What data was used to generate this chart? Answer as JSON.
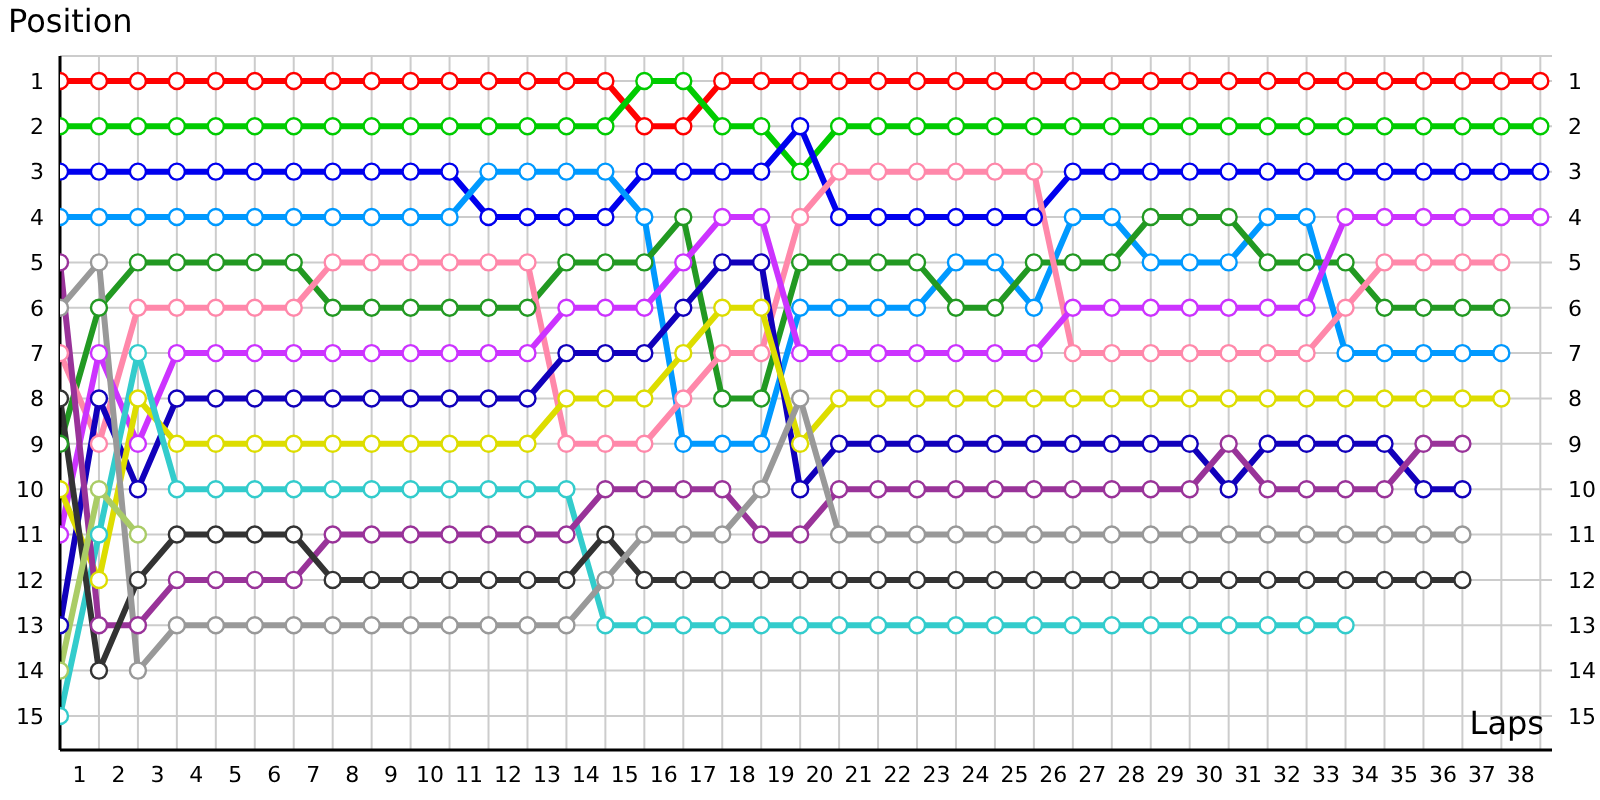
{
  "chart_data": {
    "type": "line",
    "xlabel": "Laps",
    "ylabel": "Position",
    "x": [
      0,
      1,
      2,
      3,
      4,
      5,
      6,
      7,
      8,
      9,
      10,
      11,
      12,
      13,
      14,
      15,
      16,
      17,
      18,
      19,
      20,
      21,
      22,
      23,
      24,
      25,
      26,
      27,
      28,
      29,
      30,
      31,
      32,
      33,
      34,
      35,
      36,
      37,
      38
    ],
    "xlim": [
      0,
      38.3
    ],
    "xticks": [
      {
        "value": 0.5,
        "label": "1"
      },
      {
        "value": 1.5,
        "label": "2"
      },
      {
        "value": 2.5,
        "label": "3"
      },
      {
        "value": 3.5,
        "label": "4"
      },
      {
        "value": 4.5,
        "label": "5"
      },
      {
        "value": 5.5,
        "label": "6"
      },
      {
        "value": 6.5,
        "label": "7"
      },
      {
        "value": 7.5,
        "label": "8"
      },
      {
        "value": 8.5,
        "label": "9"
      },
      {
        "value": 9.5,
        "label": "10"
      },
      {
        "value": 10.5,
        "label": "11"
      },
      {
        "value": 11.5,
        "label": "12"
      },
      {
        "value": 12.5,
        "label": "13"
      },
      {
        "value": 13.5,
        "label": "14"
      },
      {
        "value": 14.5,
        "label": "15"
      },
      {
        "value": 15.5,
        "label": "16"
      },
      {
        "value": 16.5,
        "label": "17"
      },
      {
        "value": 17.5,
        "label": "18"
      },
      {
        "value": 18.5,
        "label": "19"
      },
      {
        "value": 19.5,
        "label": "20"
      },
      {
        "value": 20.5,
        "label": "21"
      },
      {
        "value": 21.5,
        "label": "22"
      },
      {
        "value": 22.5,
        "label": "23"
      },
      {
        "value": 23.5,
        "label": "24"
      },
      {
        "value": 24.5,
        "label": "25"
      },
      {
        "value": 25.5,
        "label": "26"
      },
      {
        "value": 26.5,
        "label": "27"
      },
      {
        "value": 27.5,
        "label": "28"
      },
      {
        "value": 28.5,
        "label": "29"
      },
      {
        "value": 29.5,
        "label": "30"
      },
      {
        "value": 30.5,
        "label": "31"
      },
      {
        "value": 31.5,
        "label": "32"
      },
      {
        "value": 32.5,
        "label": "33"
      },
      {
        "value": 33.5,
        "label": "34"
      },
      {
        "value": 34.5,
        "label": "35"
      },
      {
        "value": 35.5,
        "label": "36"
      },
      {
        "value": 36.5,
        "label": "37"
      },
      {
        "value": 37.5,
        "label": "38"
      }
    ],
    "ylim": [
      15.75,
      0.45
    ],
    "yticks": [
      1,
      2,
      3,
      4,
      5,
      6,
      7,
      8,
      9,
      10,
      11,
      12,
      13,
      14,
      15
    ],
    "y2lim": [
      15.75,
      0.45
    ],
    "y2ticks": [
      1,
      2,
      3,
      4,
      5,
      6,
      7,
      8,
      9,
      10,
      11,
      12,
      13,
      14,
      15
    ],
    "grid": true,
    "marker": "circle",
    "line_style": "solid",
    "series": [
      {
        "color": "#ff0000",
        "values": [
          1,
          1,
          1,
          1,
          1,
          1,
          1,
          1,
          1,
          1,
          1,
          1,
          1,
          1,
          1,
          2,
          2,
          1,
          1,
          1,
          1,
          1,
          1,
          1,
          1,
          1,
          1,
          1,
          1,
          1,
          1,
          1,
          1,
          1,
          1,
          1,
          1,
          1,
          1
        ]
      },
      {
        "color": "#00cc00",
        "values": [
          2,
          2,
          2,
          2,
          2,
          2,
          2,
          2,
          2,
          2,
          2,
          2,
          2,
          2,
          2,
          1,
          1,
          2,
          2,
          3,
          2,
          2,
          2,
          2,
          2,
          2,
          2,
          2,
          2,
          2,
          2,
          2,
          2,
          2,
          2,
          2,
          2,
          2,
          2
        ]
      },
      {
        "color": "#0000ee",
        "values": [
          3,
          3,
          3,
          3,
          3,
          3,
          3,
          3,
          3,
          3,
          3,
          4,
          4,
          4,
          4,
          3,
          3,
          3,
          3,
          2,
          4,
          4,
          4,
          4,
          4,
          4,
          3,
          3,
          3,
          3,
          3,
          3,
          3,
          3,
          3,
          3,
          3,
          3,
          3
        ]
      },
      {
        "color": "#0099ff",
        "values": [
          4,
          4,
          4,
          4,
          4,
          4,
          4,
          4,
          4,
          4,
          4,
          3,
          3,
          3,
          3,
          4,
          9,
          9,
          9,
          6,
          6,
          6,
          6,
          5,
          5,
          6,
          4,
          4,
          5,
          5,
          5,
          4,
          4,
          7,
          7,
          7,
          7,
          7,
          null
        ]
      },
      {
        "color": "#229922",
        "values": [
          9,
          6,
          5,
          5,
          5,
          5,
          5,
          6,
          6,
          6,
          6,
          6,
          6,
          5,
          5,
          5,
          4,
          8,
          8,
          5,
          5,
          5,
          5,
          6,
          6,
          5,
          5,
          5,
          4,
          4,
          4,
          5,
          5,
          5,
          6,
          6,
          6,
          6,
          null
        ]
      },
      {
        "color": "#ff88aa",
        "values": [
          7,
          9,
          6,
          6,
          6,
          6,
          6,
          5,
          5,
          5,
          5,
          5,
          5,
          9,
          9,
          9,
          8,
          7,
          7,
          4,
          3,
          3,
          3,
          3,
          3,
          3,
          7,
          7,
          7,
          7,
          7,
          7,
          7,
          6,
          5,
          5,
          5,
          5,
          null
        ]
      },
      {
        "color": "#cc33ff",
        "values": [
          11,
          7,
          9,
          7,
          7,
          7,
          7,
          7,
          7,
          7,
          7,
          7,
          7,
          6,
          6,
          6,
          5,
          4,
          4,
          7,
          7,
          7,
          7,
          7,
          7,
          7,
          6,
          6,
          6,
          6,
          6,
          6,
          6,
          4,
          4,
          4,
          4,
          4,
          4
        ]
      },
      {
        "color": "#1100bb",
        "values": [
          13,
          8,
          10,
          8,
          8,
          8,
          8,
          8,
          8,
          8,
          8,
          8,
          8,
          7,
          7,
          7,
          6,
          5,
          5,
          10,
          9,
          9,
          9,
          9,
          9,
          9,
          9,
          9,
          9,
          9,
          10,
          9,
          9,
          9,
          9,
          10,
          10,
          null,
          null
        ]
      },
      {
        "color": "#dddd00",
        "values": [
          10,
          12,
          8,
          9,
          9,
          9,
          9,
          9,
          9,
          9,
          9,
          9,
          9,
          8,
          8,
          8,
          7,
          6,
          6,
          9,
          8,
          8,
          8,
          8,
          8,
          8,
          8,
          8,
          8,
          8,
          8,
          8,
          8,
          8,
          8,
          8,
          8,
          8,
          null
        ]
      },
      {
        "color": "#33cccc",
        "values": [
          15,
          11,
          7,
          10,
          10,
          10,
          10,
          10,
          10,
          10,
          10,
          10,
          10,
          10,
          13,
          13,
          13,
          13,
          13,
          13,
          13,
          13,
          13,
          13,
          13,
          13,
          13,
          13,
          13,
          13,
          13,
          13,
          13,
          13,
          null,
          null,
          null,
          null,
          null
        ]
      },
      {
        "color": "#993399",
        "values": [
          5,
          13,
          13,
          12,
          12,
          12,
          12,
          11,
          11,
          11,
          11,
          11,
          11,
          11,
          10,
          10,
          10,
          10,
          11,
          11,
          10,
          10,
          10,
          10,
          10,
          10,
          10,
          10,
          10,
          10,
          9,
          10,
          10,
          10,
          10,
          9,
          9,
          null,
          null
        ]
      },
      {
        "color": "#333333",
        "values": [
          8,
          14,
          12,
          11,
          11,
          11,
          11,
          12,
          12,
          12,
          12,
          12,
          12,
          12,
          11,
          12,
          12,
          12,
          12,
          12,
          12,
          12,
          12,
          12,
          12,
          12,
          12,
          12,
          12,
          12,
          12,
          12,
          12,
          12,
          12,
          12,
          12,
          null,
          null
        ]
      },
      {
        "color": "#999999",
        "values": [
          6,
          5,
          14,
          13,
          13,
          13,
          13,
          13,
          13,
          13,
          13,
          13,
          13,
          13,
          12,
          11,
          11,
          11,
          10,
          8,
          11,
          11,
          11,
          11,
          11,
          11,
          11,
          11,
          11,
          11,
          11,
          11,
          11,
          11,
          11,
          11,
          11,
          null,
          null
        ]
      },
      {
        "color": "#aacc66",
        "values": [
          14,
          10,
          11,
          null,
          null,
          null,
          null,
          null,
          null,
          null,
          null,
          null,
          null,
          null,
          null,
          null,
          null,
          null,
          null,
          null,
          null,
          null,
          null,
          null,
          null,
          null,
          null,
          null,
          null,
          null,
          null,
          null,
          null,
          null,
          null,
          null,
          null,
          null,
          null
        ]
      }
    ]
  }
}
